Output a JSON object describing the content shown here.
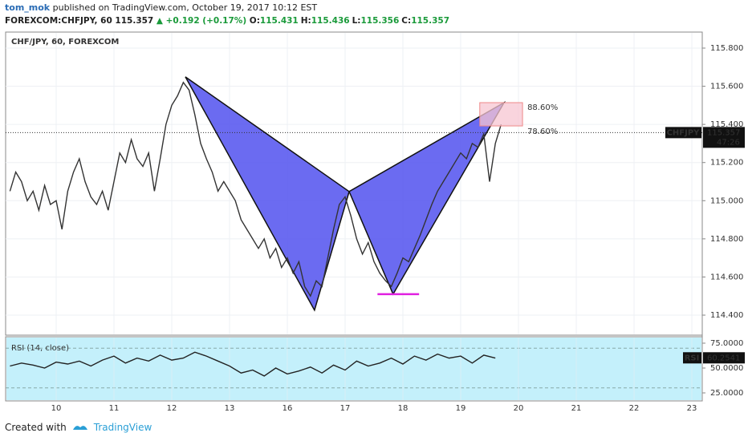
{
  "header": {
    "author": "tom_mok",
    "published": "published on TradingView.com, October 19, 2017 10:12 EST",
    "symbol": "FOREXCOM:CHFJPY, 60",
    "price": "115.357",
    "arrow": "▲",
    "change": "+0.192 (+0.17%)",
    "ohlc": [
      {
        "key": "O:",
        "value": "115.431"
      },
      {
        "key": "H:",
        "value": "115.436"
      },
      {
        "key": "L:",
        "value": "115.356"
      },
      {
        "key": "C:",
        "value": "115.357"
      }
    ]
  },
  "footer": {
    "created": "Created with",
    "brand": "TradingView"
  },
  "chart_data": [
    {
      "type": "line",
      "title": "CHF/JPY, 60, FOREXCOM",
      "color": "#333333",
      "x": [
        -0.8,
        -0.7,
        -0.6,
        -0.5,
        -0.4,
        -0.3,
        -0.2,
        -0.1,
        0.0,
        0.1,
        0.2,
        0.3,
        0.4,
        0.5,
        0.6,
        0.7,
        0.8,
        0.9,
        1.0,
        1.1,
        1.2,
        1.3,
        1.4,
        1.5,
        1.6,
        1.7,
        1.8,
        1.9,
        2.0,
        2.1,
        2.2,
        2.3,
        2.4,
        2.5,
        2.6,
        2.7,
        2.8,
        2.9,
        3.0,
        3.1,
        3.2,
        3.3,
        3.4,
        3.5,
        3.6,
        3.7,
        3.8,
        3.9,
        4.0,
        4.1,
        4.2,
        4.3,
        4.4,
        4.5,
        4.6,
        4.7,
        4.8,
        4.9,
        5.0,
        5.1,
        5.2,
        5.3,
        5.4,
        5.5,
        5.6,
        5.7,
        5.8,
        5.9,
        6.0,
        6.1,
        6.2,
        6.3,
        6.4,
        6.5,
        6.6,
        6.7,
        6.8,
        6.9,
        7.0,
        7.1,
        7.2,
        7.3,
        7.4,
        7.5,
        7.6,
        7.7
      ],
      "values": [
        115.05,
        115.15,
        115.1,
        115.0,
        115.05,
        114.95,
        115.08,
        114.98,
        115.0,
        114.85,
        115.05,
        115.15,
        115.22,
        115.1,
        115.02,
        114.98,
        115.05,
        114.95,
        115.1,
        115.25,
        115.2,
        115.32,
        115.22,
        115.18,
        115.25,
        115.05,
        115.22,
        115.4,
        115.5,
        115.55,
        115.62,
        115.58,
        115.45,
        115.3,
        115.22,
        115.15,
        115.05,
        115.1,
        115.05,
        115.0,
        114.9,
        114.85,
        114.8,
        114.75,
        114.8,
        114.7,
        114.75,
        114.65,
        114.7,
        114.62,
        114.68,
        114.55,
        114.5,
        114.58,
        114.55,
        114.7,
        114.85,
        114.98,
        115.02,
        114.92,
        114.8,
        114.72,
        114.78,
        114.68,
        114.62,
        114.58,
        114.55,
        114.62,
        114.7,
        114.68,
        114.75,
        114.82,
        114.9,
        114.98,
        115.05,
        115.1,
        115.15,
        115.2,
        115.25,
        115.22,
        115.3,
        115.28,
        115.35,
        115.1,
        115.3,
        115.4
      ],
      "xlim": [
        -0.875,
        11.18
      ],
      "ylim": [
        114.295,
        115.884
      ],
      "xticks": [
        {
          "value": 0,
          "label": "10"
        },
        {
          "value": 1,
          "label": "11"
        },
        {
          "value": 2,
          "label": "12"
        },
        {
          "value": 3,
          "label": "13"
        },
        {
          "value": 4,
          "label": "16"
        },
        {
          "value": 5,
          "label": "17"
        },
        {
          "value": 6,
          "label": "18"
        },
        {
          "value": 7,
          "label": "19"
        },
        {
          "value": 8,
          "label": "20"
        },
        {
          "value": 9,
          "label": "21"
        },
        {
          "value": 10,
          "label": "22"
        },
        {
          "value": 11,
          "label": "23"
        }
      ],
      "yticks": [
        {
          "value": 114.4,
          "label": "114.400"
        },
        {
          "value": 114.6,
          "label": "114.600"
        },
        {
          "value": 114.8,
          "label": "114.800"
        },
        {
          "value": 115.0,
          "label": "115.000"
        },
        {
          "value": 115.2,
          "label": "115.200"
        },
        {
          "value": 115.4,
          "label": "115.400"
        },
        {
          "value": 115.6,
          "label": "115.600"
        },
        {
          "value": 115.8,
          "label": "115.800"
        }
      ],
      "grid": true,
      "pattern": {
        "color": "#5b5bf0",
        "points": [
          {
            "x": 2.236,
            "price": 115.649
          },
          {
            "x": 4.47,
            "price": 114.426
          },
          {
            "x": 5.07,
            "price": 115.048
          },
          {
            "x": 5.83,
            "price": 114.51
          },
          {
            "x": 7.75,
            "price": 115.514
          }
        ]
      },
      "fib": {
        "color": "#f7c6d2",
        "x": [
          7.33,
          8.07
        ],
        "levels": [
          {
            "label": "88.60%",
            "value": 115.514
          },
          {
            "label": "78.60%",
            "value": 115.392
          }
        ]
      },
      "support": {
        "color": "#e020e0",
        "x": [
          5.56,
          6.28
        ],
        "value": 114.51
      },
      "last": {
        "symbol": "CHFJPY",
        "value": 115.357,
        "timer": "47:26"
      }
    },
    {
      "type": "line",
      "title": "RSI (14, close)",
      "color": "#222222",
      "band_color": "#c4f0fb",
      "x": [
        -0.8,
        -0.6,
        -0.4,
        -0.2,
        0.0,
        0.2,
        0.4,
        0.6,
        0.8,
        1.0,
        1.2,
        1.4,
        1.6,
        1.8,
        2.0,
        2.2,
        2.4,
        2.6,
        2.8,
        3.0,
        3.2,
        3.4,
        3.6,
        3.8,
        4.0,
        4.2,
        4.4,
        4.6,
        4.8,
        5.0,
        5.2,
        5.4,
        5.6,
        5.8,
        6.0,
        6.2,
        6.4,
        6.6,
        6.8,
        7.0,
        7.2,
        7.4,
        7.6
      ],
      "values": [
        52,
        55,
        53,
        50,
        56,
        54,
        57,
        52,
        58,
        62,
        55,
        60,
        57,
        63,
        58,
        60,
        66,
        62,
        57,
        52,
        45,
        48,
        42,
        50,
        44,
        47,
        51,
        45,
        53,
        48,
        57,
        52,
        55,
        60,
        54,
        62,
        58,
        64,
        60,
        62,
        55,
        63,
        60
      ],
      "xlim": [
        -0.875,
        11.18
      ],
      "ylim": [
        16.94,
        81.45
      ],
      "yticks": [
        {
          "value": 25,
          "label": "25.0000"
        },
        {
          "value": 50,
          "label": "50.0000"
        },
        {
          "value": 75,
          "label": "75.0000"
        }
      ],
      "bands": [
        30,
        70
      ],
      "last": {
        "name": "RSI",
        "value": 60.2541
      }
    }
  ]
}
